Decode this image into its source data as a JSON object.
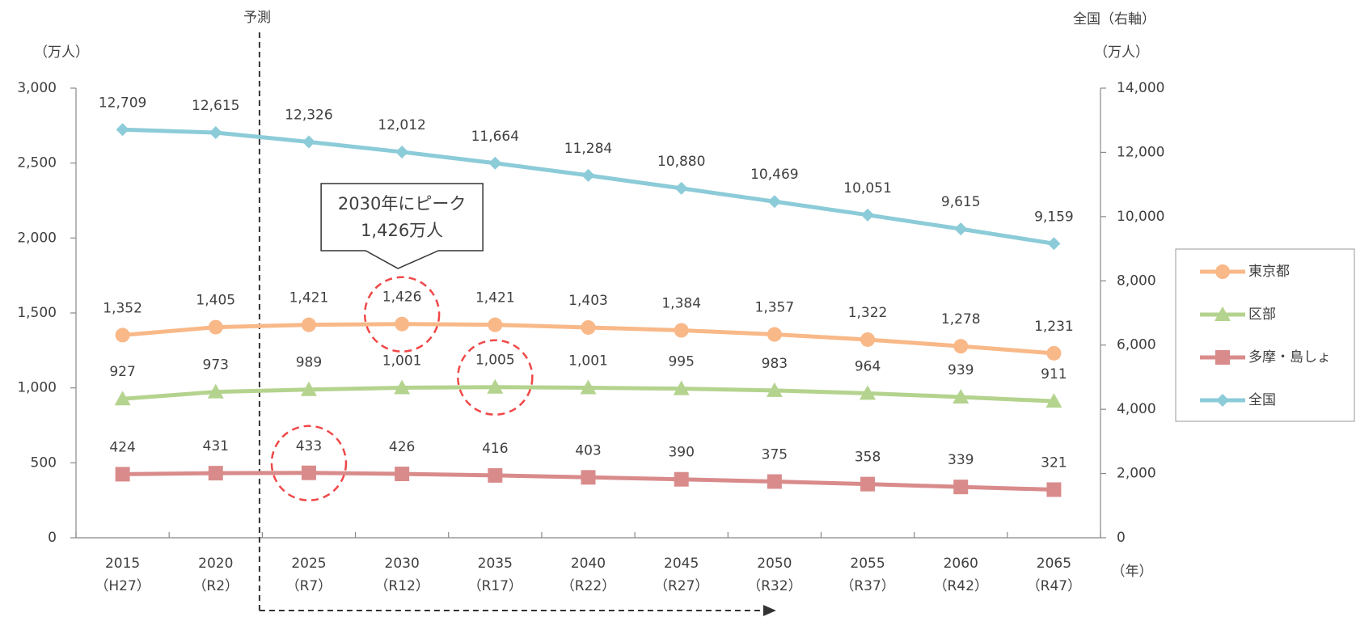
{
  "chart_data": {
    "type": "line",
    "annotations": {
      "forecast": "予測",
      "peak_line1": "2030年にピーク",
      "peak_line2": "1,426万人",
      "y2_note": "全国（右軸）"
    },
    "ylabel": "（万人）",
    "y2label": "（万人）",
    "xlabel": "（年）",
    "categories": [
      [
        "2015",
        "（H27）"
      ],
      [
        "2020",
        "（R2）"
      ],
      [
        "2025",
        "（R7）"
      ],
      [
        "2030",
        "（R12）"
      ],
      [
        "2035",
        "（R17）"
      ],
      [
        "2040",
        "（R22）"
      ],
      [
        "2045",
        "（R27）"
      ],
      [
        "2050",
        "（R32）"
      ],
      [
        "2055",
        "（R37）"
      ],
      [
        "2060",
        "（R42）"
      ],
      [
        "2065",
        "（R47）"
      ]
    ],
    "series": [
      {
        "name": "東京都",
        "color": "#f8b888",
        "marker": "circle",
        "values": [
          1352,
          1405,
          1421,
          1426,
          1421,
          1403,
          1384,
          1357,
          1322,
          1278,
          1231
        ],
        "value_labels": [
          "1,352",
          "1,405",
          "1,421",
          "1,426",
          "1,421",
          "1,403",
          "1,384",
          "1,357",
          "1,322",
          "1,278",
          "1,231"
        ]
      },
      {
        "name": "区部",
        "color": "#b4d38e",
        "marker": "triangle",
        "values": [
          927,
          973,
          989,
          1001,
          1005,
          1001,
          995,
          983,
          964,
          939,
          911
        ],
        "value_labels": [
          "927",
          "973",
          "989",
          "1,001",
          "1,005",
          "1,001",
          "995",
          "983",
          "964",
          "939",
          "911"
        ]
      },
      {
        "name": "多摩・島しょ",
        "color": "#d98b8b",
        "marker": "square",
        "values": [
          424,
          431,
          433,
          426,
          416,
          403,
          390,
          375,
          358,
          339,
          321
        ]
      },
      {
        "name": "全国",
        "color": "#8ccbd8",
        "marker": "diamond",
        "axis": "y2",
        "values": [
          12709,
          12615,
          12326,
          12012,
          11664,
          11284,
          10880,
          10469,
          10051,
          9615,
          9159
        ],
        "value_labels": [
          "12,709",
          "12,615",
          "12,326",
          "12,012",
          "11,664",
          "11,284",
          "10,880",
          "10,469",
          "10,051",
          "9,615",
          "9,159"
        ]
      }
    ],
    "ylim": [
      0,
      3000
    ],
    "yticks": [
      0,
      500,
      {
        "value": 1000,
        "label": "1,000"
      },
      {
        "value": 1500,
        "label": "1,500"
      },
      {
        "value": 2000,
        "label": "2,000"
      },
      {
        "value": 2500,
        "label": "2,500"
      },
      {
        "value": 3000,
        "label": "3,000"
      }
    ],
    "y2lim": [
      0,
      14000
    ],
    "y2ticks": [
      0,
      {
        "value": 2000,
        "label": "2,000"
      },
      {
        "value": 4000,
        "label": "4,000"
      },
      {
        "value": 6000,
        "label": "6,000"
      },
      {
        "value": 8000,
        "label": "8,000"
      },
      {
        "value": 10000,
        "label": "10,000"
      },
      {
        "value": 12000,
        "label": "12,000"
      },
      {
        "value": 14000,
        "label": "14,000"
      }
    ],
    "legend": "right"
  }
}
